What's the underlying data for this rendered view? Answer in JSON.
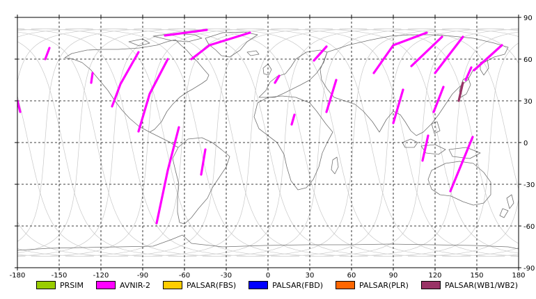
{
  "chart_data": {
    "type": "map",
    "projection": "equirectangular",
    "xlim": [
      -180,
      180
    ],
    "ylim": [
      -90,
      90
    ],
    "x_ticks": [
      -180,
      -150,
      -120,
      -90,
      -60,
      -30,
      0,
      30,
      60,
      90,
      120,
      150,
      180
    ],
    "y_ticks": [
      90,
      60,
      30,
      0,
      -30,
      -60,
      -90
    ],
    "grid": "dashed",
    "legend_position": "bottom",
    "legend": [
      {
        "label": "PRSIM",
        "color": "#99cc00"
      },
      {
        "label": "AVNIR-2",
        "color": "#ff00ff"
      },
      {
        "label": "PALSAR(FBS)",
        "color": "#ffcc00"
      },
      {
        "label": "PALSAR(FBD)",
        "color": "#0000ff"
      },
      {
        "label": "PALSAR(PLR)",
        "color": "#ff6600"
      },
      {
        "label": "PALSAR(WB1/WB2)",
        "color": "#993366"
      }
    ],
    "orbit_track_color": "#c8c8c8",
    "coastline_color": "#707070",
    "segments": [
      {
        "sensor": "AVNIR-2",
        "path": [
          [
            -157,
            68
          ],
          [
            -160,
            60
          ]
        ]
      },
      {
        "sensor": "AVNIR-2",
        "path": [
          [
            -180,
            30
          ],
          [
            -178,
            22
          ]
        ]
      },
      {
        "sensor": "AVNIR-2",
        "path": [
          [
            -126,
            50
          ],
          [
            -127,
            43
          ]
        ]
      },
      {
        "sensor": "AVNIR-2",
        "path": [
          [
            -93,
            65
          ],
          [
            -106,
            42
          ],
          [
            -112,
            26
          ]
        ]
      },
      {
        "sensor": "AVNIR-2",
        "path": [
          [
            -72,
            60
          ],
          [
            -85,
            35
          ],
          [
            -93,
            8
          ]
        ]
      },
      {
        "sensor": "AVNIR-2",
        "path": [
          [
            -44,
            81
          ],
          [
            -74,
            77
          ]
        ]
      },
      {
        "sensor": "AVNIR-2",
        "path": [
          [
            -13,
            79
          ],
          [
            -42,
            70
          ],
          [
            -55,
            60
          ]
        ]
      },
      {
        "sensor": "AVNIR-2",
        "path": [
          [
            -64,
            11
          ],
          [
            -72,
            -20
          ],
          [
            -80,
            -58
          ]
        ]
      },
      {
        "sensor": "AVNIR-2",
        "path": [
          [
            -45,
            -5
          ],
          [
            -48,
            -23
          ]
        ]
      },
      {
        "sensor": "AVNIR-2",
        "path": [
          [
            42,
            69
          ],
          [
            33,
            59
          ]
        ]
      },
      {
        "sensor": "AVNIR-2",
        "path": [
          [
            8,
            48
          ],
          [
            5,
            43
          ]
        ]
      },
      {
        "sensor": "AVNIR-2",
        "path": [
          [
            19,
            20
          ],
          [
            17,
            13
          ]
        ]
      },
      {
        "sensor": "AVNIR-2",
        "path": [
          [
            49,
            45
          ],
          [
            42,
            22
          ]
        ]
      },
      {
        "sensor": "AVNIR-2",
        "path": [
          [
            114,
            79
          ],
          [
            90,
            70
          ],
          [
            76,
            50
          ]
        ]
      },
      {
        "sensor": "AVNIR-2",
        "path": [
          [
            125,
            76
          ],
          [
            103,
            55
          ]
        ]
      },
      {
        "sensor": "AVNIR-2",
        "path": [
          [
            140,
            76
          ],
          [
            120,
            50
          ]
        ]
      },
      {
        "sensor": "AVNIR-2",
        "path": [
          [
            168,
            70
          ],
          [
            148,
            52
          ]
        ]
      },
      {
        "sensor": "AVNIR-2",
        "path": [
          [
            97,
            38
          ],
          [
            90,
            14
          ]
        ]
      },
      {
        "sensor": "AVNIR-2",
        "path": [
          [
            126,
            40
          ],
          [
            119,
            22
          ]
        ]
      },
      {
        "sensor": "AVNIR-2",
        "path": [
          [
            115,
            5
          ],
          [
            111,
            -13
          ]
        ]
      },
      {
        "sensor": "AVNIR-2",
        "path": [
          [
            147,
            4
          ],
          [
            131,
            -35
          ]
        ]
      },
      {
        "sensor": "AVNIR-2",
        "path": [
          [
            146,
            54
          ],
          [
            142,
            45
          ]
        ]
      },
      {
        "sensor": "PALSAR(WB1/WB2)",
        "path": [
          [
            140,
            43
          ],
          [
            137,
            30
          ]
        ]
      }
    ]
  }
}
